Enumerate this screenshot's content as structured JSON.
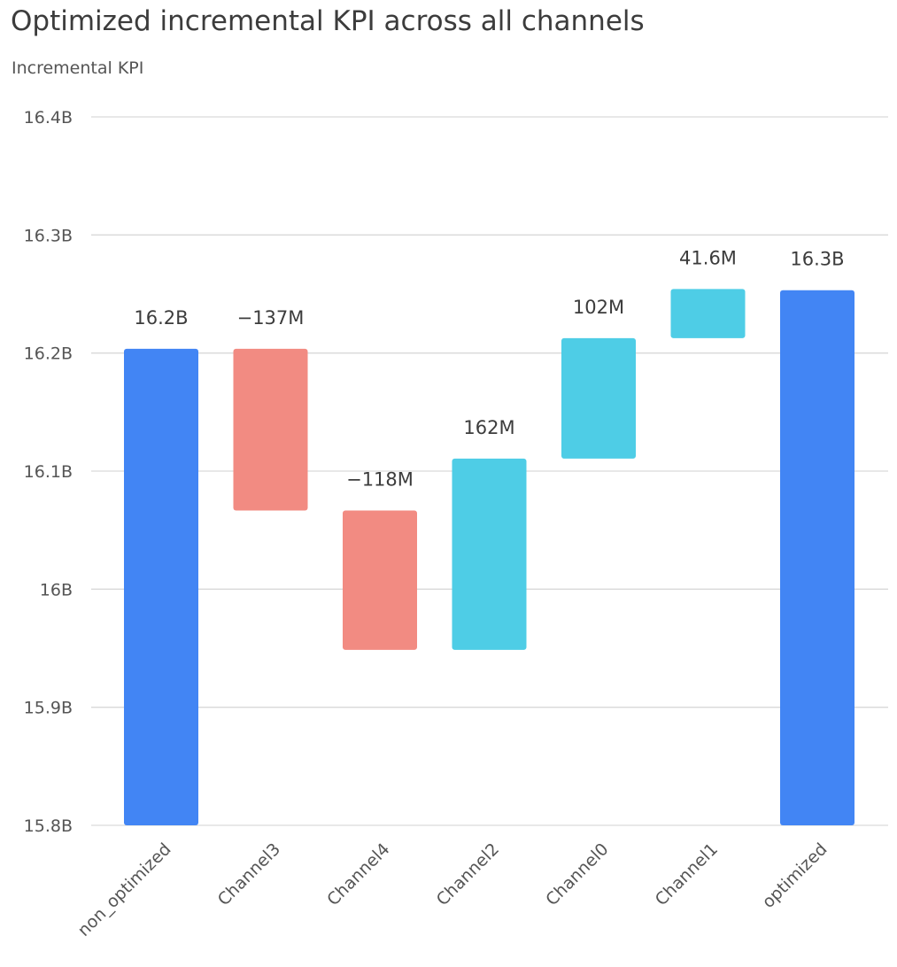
{
  "chart_data": {
    "type": "waterfall",
    "title": "Optimized incremental KPI across all channels",
    "ylabel": "Incremental KPI",
    "xlabel": "",
    "ylim": [
      15.8,
      16.4
    ],
    "yunit": "B",
    "yticks": [
      "15.8B",
      "15.9B",
      "16B",
      "16.1B",
      "16.2B",
      "16.3B",
      "16.4B"
    ],
    "ytick_values": [
      15.8,
      15.9,
      16.0,
      16.1,
      16.2,
      16.3,
      16.4
    ],
    "grid": true,
    "categories": [
      "non_optimized",
      "Channel3",
      "Channel4",
      "Channel2",
      "Channel0",
      "Channel1",
      "optimized"
    ],
    "bars": [
      {
        "kind": "total",
        "value": 16.2036,
        "label": "16.2B"
      },
      {
        "kind": "delta",
        "value": -0.137,
        "label": "−137M"
      },
      {
        "kind": "delta",
        "value": -0.118,
        "label": "−118M"
      },
      {
        "kind": "delta",
        "value": 0.162,
        "label": "162M"
      },
      {
        "kind": "delta",
        "value": 0.102,
        "label": "102M"
      },
      {
        "kind": "delta",
        "value": 0.0416,
        "label": "41.6M"
      },
      {
        "kind": "total",
        "value": 16.2532,
        "label": "16.3B"
      }
    ],
    "colors": {
      "total": "#4285f4",
      "decrease": "#f28b82",
      "increase": "#4ecde6",
      "grid": "#d9d9d9"
    }
  }
}
